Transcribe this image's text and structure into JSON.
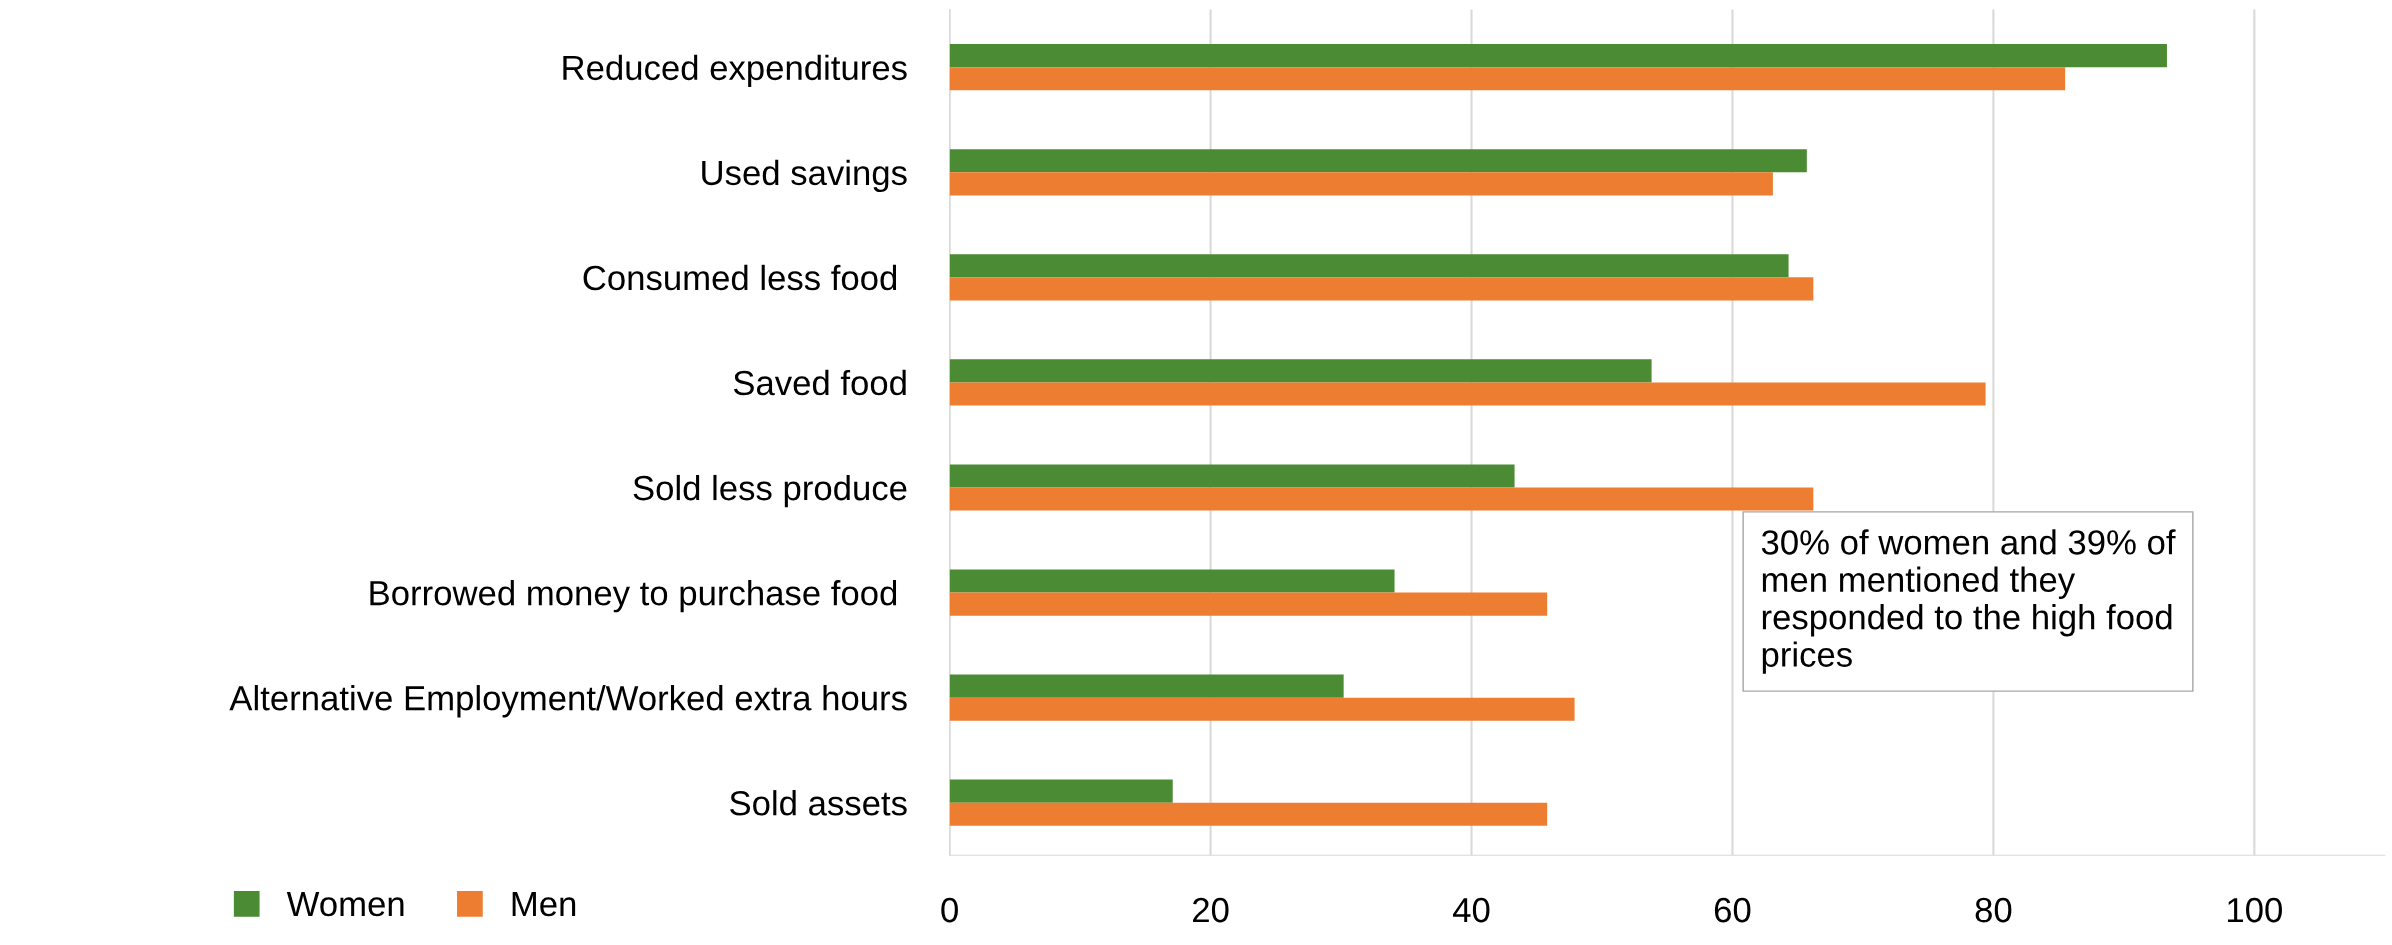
{
  "chart_data": {
    "type": "bar",
    "orientation": "horizontal",
    "categories": [
      "Reduced expenditures",
      "Used savings",
      "Consumed less food ",
      "Saved food",
      "Sold less produce",
      "Borrowed money to purchase food ",
      "Alternative Employment/Worked extra hours",
      "Sold assets"
    ],
    "series": [
      {
        "name": "Women",
        "color": "#4a8b33",
        "values": [
          93.3,
          65.7,
          64.3,
          53.8,
          43.3,
          34.1,
          30.2,
          17.1
        ]
      },
      {
        "name": "Men",
        "color": "#ed7d31",
        "values": [
          85.5,
          63.1,
          66.2,
          79.4,
          66.2,
          45.8,
          47.9,
          45.8
        ]
      }
    ],
    "xlim": [
      0,
      110
    ],
    "xticks": [
      0,
      20,
      40,
      60,
      80,
      100
    ],
    "grid": "x",
    "legend": "bottom left",
    "annotations": [
      "30% of women and 39% of\nmen mentioned they\nresponded to the high food\nprices"
    ]
  }
}
